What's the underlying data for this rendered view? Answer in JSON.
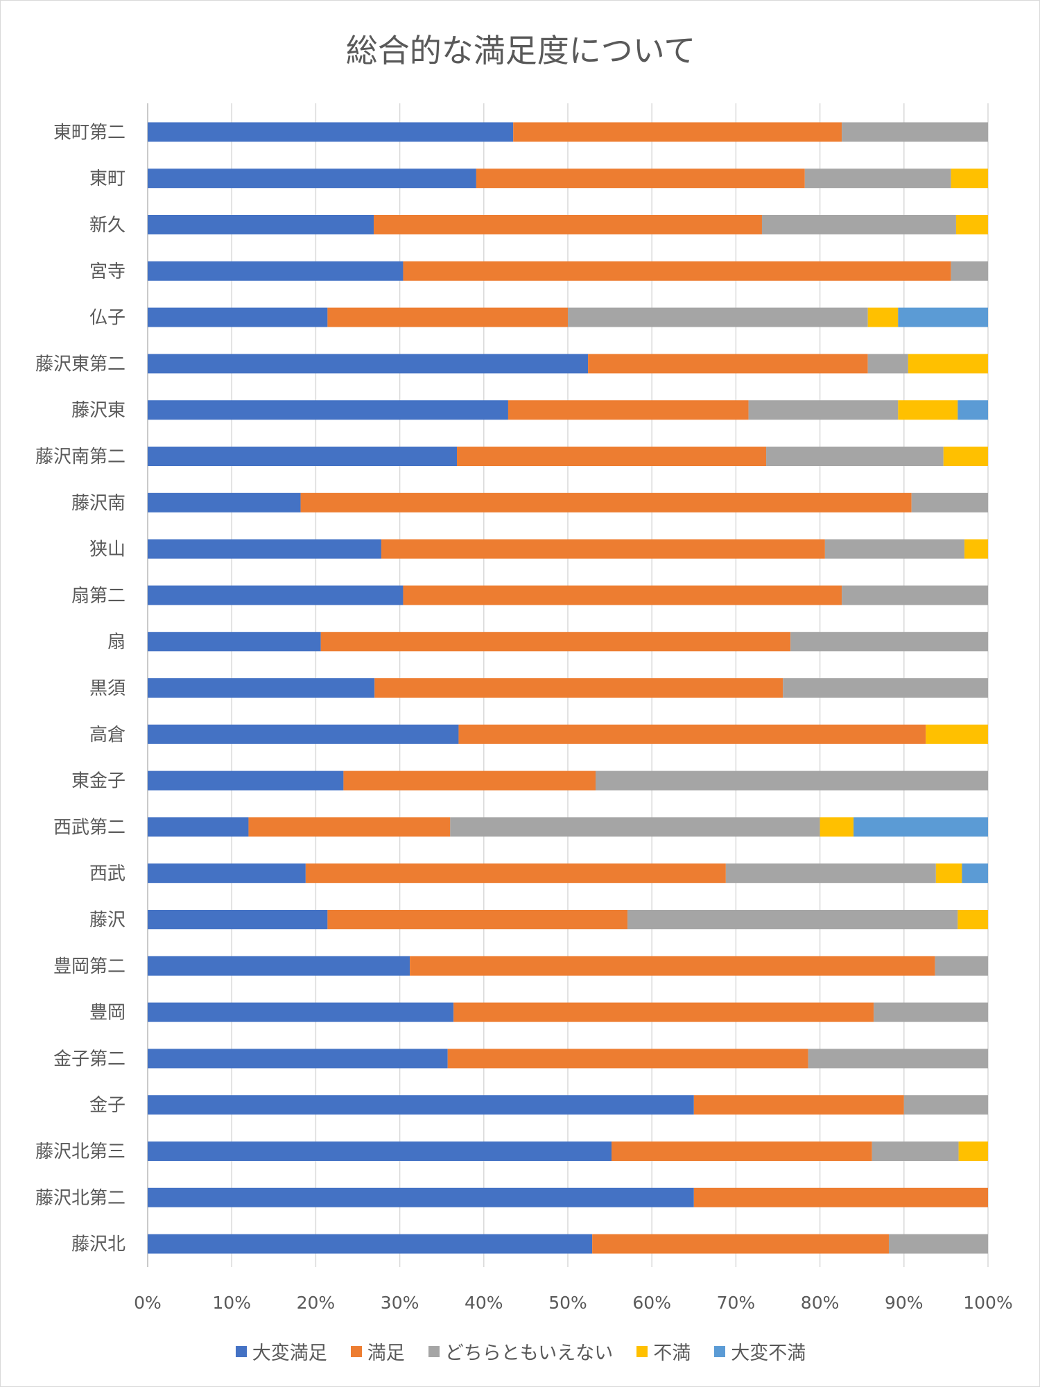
{
  "chart_data": {
    "type": "bar",
    "orientation": "horizontal",
    "stacked": "percent",
    "title": "総合的な満足度について",
    "xlim": [
      0,
      100
    ],
    "x_ticks": [
      "0%",
      "10%",
      "20%",
      "30%",
      "40%",
      "50%",
      "60%",
      "70%",
      "80%",
      "90%",
      "100%"
    ],
    "grid": "vertical",
    "legend_position": "bottom",
    "categories": [
      "東町第二",
      "東町",
      "新久",
      "宮寺",
      "仏子",
      "藤沢東第二",
      "藤沢東",
      "藤沢南第二",
      "藤沢南",
      "狭山",
      "扇第二",
      "扇",
      "黒須",
      "高倉",
      "東金子",
      "西武第二",
      "西武",
      "藤沢",
      "豊岡第二",
      "豊岡",
      "金子第二",
      "金子",
      "藤沢北第三",
      "藤沢北第二",
      "藤沢北"
    ],
    "series": [
      {
        "name": "大変満足",
        "color": "#4472C4",
        "values": [
          43.5,
          39.1,
          26.9,
          30.4,
          21.4,
          52.4,
          42.9,
          36.8,
          18.2,
          27.8,
          30.4,
          20.6,
          27.0,
          37.0,
          23.3,
          12.0,
          18.8,
          21.4,
          31.2,
          36.4,
          35.7,
          65.0,
          55.2,
          65.0,
          52.9
        ]
      },
      {
        "name": "満足",
        "color": "#ED7D31",
        "values": [
          39.1,
          39.1,
          46.2,
          65.2,
          28.6,
          33.3,
          28.6,
          36.8,
          72.7,
          52.8,
          52.2,
          55.9,
          48.6,
          55.6,
          30.0,
          24.0,
          50.0,
          35.7,
          62.5,
          50.0,
          42.9,
          25.0,
          31.0,
          35.0,
          35.3
        ]
      },
      {
        "name": "どちらともいえない",
        "color": "#A5A5A5",
        "values": [
          17.4,
          17.4,
          23.1,
          4.4,
          35.7,
          4.8,
          17.8,
          21.1,
          9.1,
          16.6,
          17.4,
          23.5,
          24.4,
          0,
          46.7,
          44.0,
          25.0,
          39.3,
          6.3,
          13.6,
          21.4,
          10.0,
          10.3,
          0,
          11.8
        ]
      },
      {
        "name": "不満",
        "color": "#FFC000",
        "values": [
          0,
          4.4,
          3.8,
          0,
          3.6,
          9.5,
          7.1,
          5.3,
          0,
          2.8,
          0,
          0,
          0,
          7.4,
          0,
          4.0,
          3.1,
          3.6,
          0,
          0,
          0,
          0,
          3.5,
          0,
          0
        ]
      },
      {
        "name": "大変不満",
        "color": "#5B9BD5",
        "values": [
          0,
          0,
          0,
          0,
          10.7,
          0,
          3.6,
          0,
          0,
          0,
          0,
          0,
          0,
          0,
          0,
          16.0,
          3.1,
          0,
          0,
          0,
          0,
          0,
          0,
          0,
          0
        ]
      }
    ]
  }
}
